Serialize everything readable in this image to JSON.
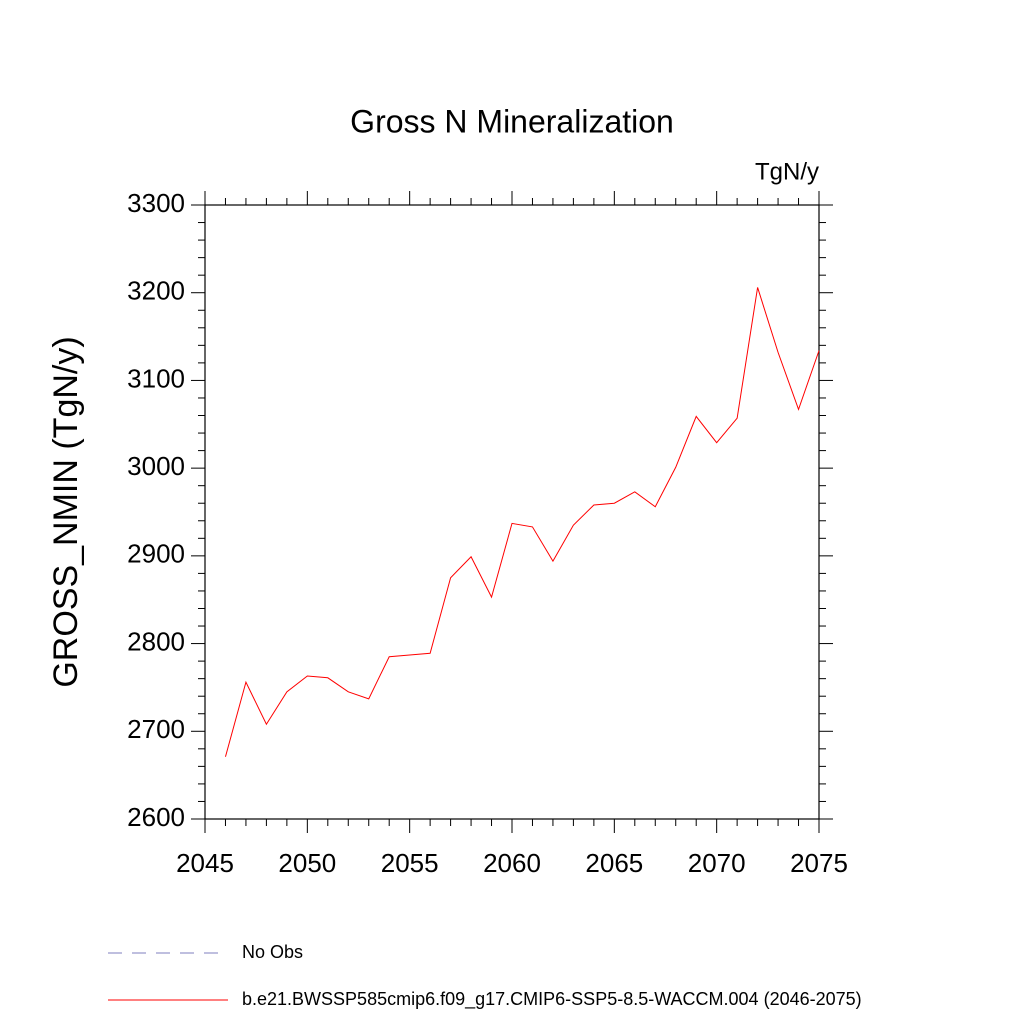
{
  "chart_data": {
    "type": "line",
    "title": "Gross N Mineralization",
    "units": "TgN/y",
    "y_label": "GROSS_NMIN  (TgN/y)",
    "x": [
      2046,
      2047,
      2048,
      2049,
      2050,
      2051,
      2052,
      2053,
      2054,
      2055,
      2056,
      2057,
      2058,
      2059,
      2060,
      2061,
      2062,
      2063,
      2064,
      2065,
      2066,
      2067,
      2068,
      2069,
      2070,
      2071,
      2072,
      2073,
      2074,
      2075
    ],
    "series": [
      {
        "name": "No Obs",
        "color": "#7f7fbf",
        "dash": true,
        "values": [
          null,
          null,
          null,
          null,
          null,
          null,
          null,
          null,
          null,
          null,
          null,
          null,
          null,
          null,
          null,
          null,
          null,
          null,
          null,
          null,
          null,
          null,
          null,
          null,
          null,
          null,
          null,
          null,
          null,
          null
        ]
      },
      {
        "name": "b.e21.BWSSP585cmip6.f09_g17.CMIP6-SSP5-8.5-WACCM.004 (2046-2075)",
        "color": "#ff0000",
        "dash": false,
        "values": [
          2671,
          2756,
          2708,
          2745,
          2763,
          2761,
          2745,
          2737,
          2785,
          2787,
          2789,
          2875,
          2899,
          2853,
          2937,
          2933,
          2894,
          2935,
          2958,
          2960,
          2973,
          2956,
          3001,
          3059,
          3029,
          3057,
          3206,
          3132,
          3067,
          3134
        ]
      }
    ],
    "xlim": [
      2045,
      2075
    ],
    "xticks": [
      2045,
      2050,
      2055,
      2060,
      2065,
      2070,
      2075
    ],
    "ylim": [
      2600,
      3300
    ],
    "yticks": [
      2600,
      2700,
      2800,
      2900,
      3000,
      3100,
      3200,
      3300
    ]
  }
}
